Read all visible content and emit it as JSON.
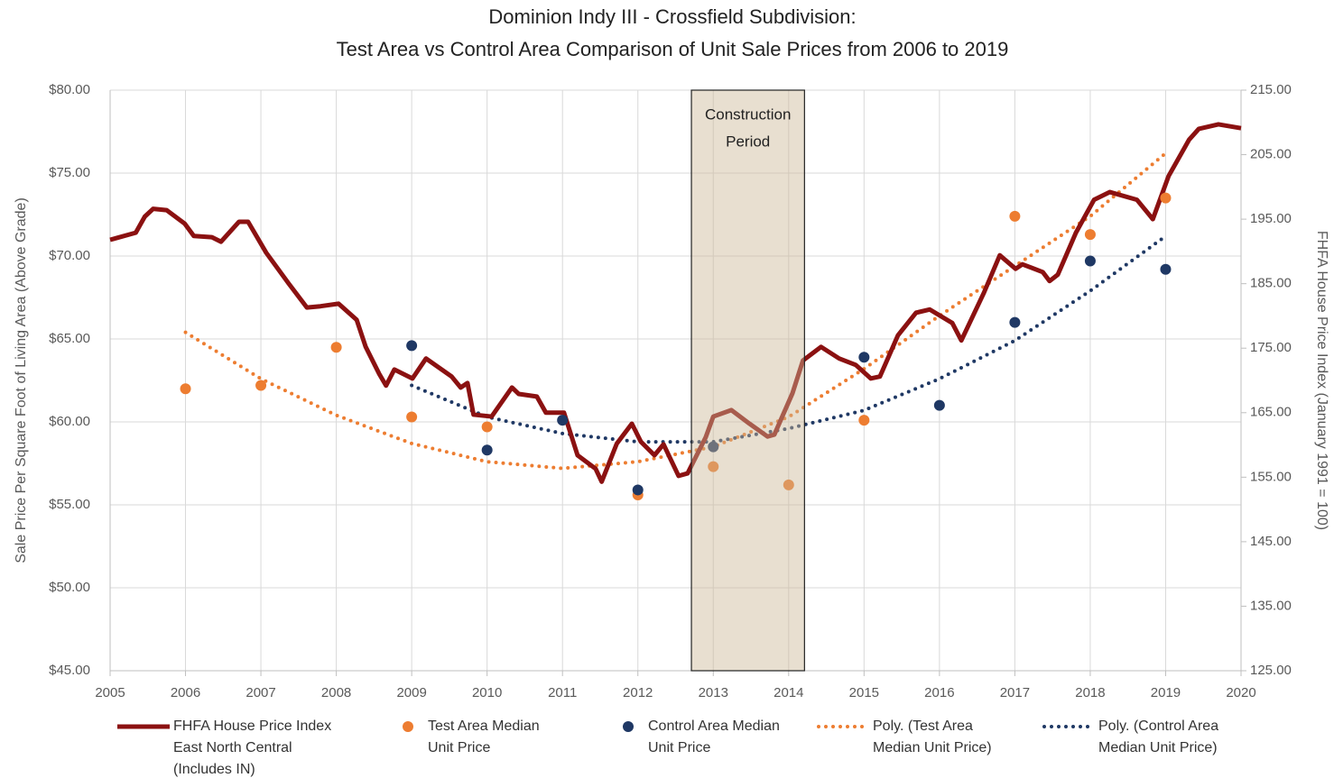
{
  "chart_data": {
    "type": "combo",
    "title": "Dominion Indy III - Crossfield Subdivision:",
    "subtitle": "Test Area vs Control Area Comparison of Unit Sale Prices from 2006 to 2019",
    "y_label": "Sale Price Per Square Foot of Living Area (Above Grade)",
    "y2_label": "FHFA House Price Index (January 1991 = 100)",
    "xlim": [
      2005,
      2020
    ],
    "xticks": [
      2005,
      2006,
      2007,
      2008,
      2009,
      2010,
      2011,
      2012,
      2013,
      2014,
      2015,
      2016,
      2017,
      2018,
      2019,
      2020
    ],
    "ylim": [
      45,
      80
    ],
    "yticks": [
      {
        "value": 45,
        "label": "$45.00"
      },
      {
        "value": 50,
        "label": "$50.00"
      },
      {
        "value": 55,
        "label": "$55.00"
      },
      {
        "value": 60,
        "label": "$60.00"
      },
      {
        "value": 65,
        "label": "$65.00"
      },
      {
        "value": 70,
        "label": "$70.00"
      },
      {
        "value": 75,
        "label": "$75.00"
      },
      {
        "value": 80,
        "label": "$80.00"
      }
    ],
    "y2lim": [
      125,
      215
    ],
    "y2ticks": [
      {
        "value": 125,
        "label": "125.00"
      },
      {
        "value": 135,
        "label": "135.00"
      },
      {
        "value": 145,
        "label": "145.00"
      },
      {
        "value": 155,
        "label": "155.00"
      },
      {
        "value": 165,
        "label": "165.00"
      },
      {
        "value": 175,
        "label": "175.00"
      },
      {
        "value": 185,
        "label": "185.00"
      },
      {
        "value": 195,
        "label": "195.00"
      },
      {
        "value": 205,
        "label": "205.00"
      },
      {
        "value": 215,
        "label": "215.00"
      }
    ],
    "grid": true,
    "legend": "bottom",
    "shade": {
      "label": [
        "Construction",
        "Period"
      ],
      "x": [
        2012.71,
        2014.21
      ]
    },
    "series": [
      {
        "name": "FHFA House Price Index East North Central (Includes IN)",
        "kind": "line",
        "axis": "y2",
        "color": "#8b1111",
        "x": [
          2005.0,
          2005.34,
          2005.46,
          2005.57,
          2005.75,
          2005.99,
          2006.11,
          2006.35,
          2006.47,
          2006.71,
          2006.83,
          2007.07,
          2007.37,
          2007.61,
          2007.79,
          2008.03,
          2008.27,
          2008.39,
          2008.57,
          2008.66,
          2008.77,
          2009.01,
          2009.19,
          2009.53,
          2009.65,
          2009.74,
          2009.82,
          2010.06,
          2010.33,
          2010.42,
          2010.66,
          2010.78,
          2011.02,
          2011.2,
          2011.44,
          2011.52,
          2011.72,
          2011.92,
          2012.04,
          2012.22,
          2012.34,
          2012.54,
          2012.66,
          2012.9,
          2013.0,
          2013.24,
          2013.48,
          2013.72,
          2013.81,
          2014.05,
          2014.19,
          2014.43,
          2014.67,
          2014.89,
          2015.09,
          2015.21,
          2015.45,
          2015.69,
          2015.87,
          2016.17,
          2016.29,
          2016.59,
          2016.8,
          2017.01,
          2017.1,
          2017.37,
          2017.46,
          2017.57,
          2017.81,
          2018.05,
          2018.26,
          2018.62,
          2018.83,
          2019.04,
          2019.31,
          2019.44,
          2019.7,
          2020.0
        ],
        "values": [
          191.8,
          192.9,
          195.4,
          196.6,
          196.4,
          194.3,
          192.4,
          192.2,
          191.5,
          194.6,
          194.6,
          189.8,
          185.0,
          181.3,
          181.5,
          181.9,
          179.4,
          175.2,
          171.0,
          169.2,
          171.7,
          170.3,
          173.4,
          170.6,
          168.9,
          169.6,
          164.7,
          164.4,
          168.9,
          167.9,
          167.5,
          165.0,
          165.0,
          158.4,
          156.3,
          154.3,
          160.2,
          163.3,
          160.5,
          158.4,
          160.1,
          155.2,
          155.6,
          161.2,
          164.4,
          165.4,
          163.3,
          161.3,
          161.6,
          168.0,
          173.1,
          175.2,
          173.4,
          172.4,
          170.3,
          170.6,
          177.0,
          180.5,
          181.0,
          178.9,
          176.2,
          183.6,
          189.4,
          187.3,
          188.0,
          186.8,
          185.4,
          186.4,
          192.9,
          198.0,
          199.2,
          198.0,
          195.0,
          201.7,
          207.3,
          209.0,
          209.7,
          209.1
        ]
      },
      {
        "name": "Test Area Median Unit Price",
        "kind": "scatter",
        "color": "#ed7d31",
        "x": [
          2006,
          2007,
          2008,
          2009,
          2010,
          2012,
          2013,
          2014,
          2015,
          2017,
          2018,
          2019
        ],
        "values": [
          62.0,
          62.2,
          64.5,
          60.3,
          59.7,
          55.6,
          57.3,
          56.2,
          60.1,
          72.4,
          71.3,
          73.5
        ]
      },
      {
        "name": "Control Area Median Unit Price",
        "kind": "scatter",
        "color": "#1f3864",
        "x": [
          2009,
          2010,
          2011,
          2012,
          2013,
          2015,
          2016,
          2017,
          2018,
          2019
        ],
        "values": [
          64.6,
          58.3,
          60.1,
          55.9,
          58.5,
          63.9,
          61.0,
          66.0,
          69.7,
          69.2
        ]
      },
      {
        "name": "Poly. (Test Area Median Unit Price)",
        "kind": "trend",
        "color": "#ed7d31",
        "x": [
          2006,
          2007,
          2008,
          2009,
          2010,
          2011,
          2012,
          2013,
          2014,
          2015,
          2016,
          2017,
          2018,
          2019
        ],
        "values": [
          65.4,
          62.6,
          60.4,
          58.7,
          57.6,
          57.2,
          57.6,
          58.5,
          60.3,
          63.2,
          66.4,
          69.4,
          72.4,
          76.2
        ]
      },
      {
        "name": "Poly. (Control Area Median Unit Price)",
        "kind": "trend",
        "color": "#1f3864",
        "x": [
          2009,
          2010,
          2011,
          2012,
          2013,
          2014,
          2015,
          2016,
          2017,
          2018,
          2019
        ],
        "values": [
          62.2,
          60.3,
          59.3,
          58.8,
          58.8,
          59.6,
          60.7,
          62.6,
          64.9,
          67.9,
          71.2
        ]
      }
    ]
  }
}
